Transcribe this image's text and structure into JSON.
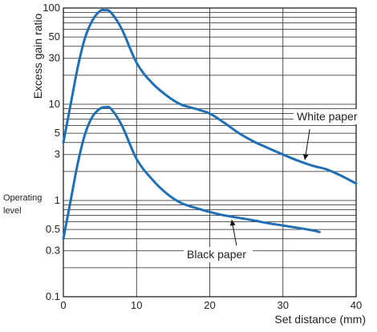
{
  "chart_data": {
    "type": "line",
    "xlabel": "Set distance (mm)",
    "ylabel": "Excess gain ratio",
    "xlim": [
      0,
      40
    ],
    "ylim": [
      0.1,
      100
    ],
    "yscale": "log",
    "grid": true,
    "x_ticks": [
      0,
      10,
      20,
      30,
      40
    ],
    "x_tick_labels": [
      "0",
      "10",
      "20",
      "30",
      "40"
    ],
    "y_ticks": [
      0.1,
      0.3,
      0.5,
      1,
      3,
      5,
      10,
      30,
      50,
      100
    ],
    "y_tick_labels": [
      "0.1",
      "0.3",
      "0.5",
      "1",
      "3",
      "5",
      "10",
      "30",
      "50",
      "100"
    ],
    "operating_level": {
      "label_line1": "Operating",
      "label_line2": "level",
      "value": 1
    },
    "series": [
      {
        "name": "White paper",
        "color": "#1f6fb4",
        "x": [
          0,
          1,
          2,
          3,
          4,
          5,
          5.7,
          6.5,
          8,
          10,
          12,
          14,
          16,
          18,
          20,
          22,
          24,
          26,
          28,
          30,
          32,
          34,
          36,
          38,
          40
        ],
        "y": [
          4,
          10,
          25,
          50,
          75,
          93,
          95,
          90,
          60,
          27,
          17,
          12.5,
          10,
          9,
          8,
          6.4,
          5,
          4.1,
          3.5,
          3,
          2.6,
          2.3,
          2.1,
          1.8,
          1.5
        ]
      },
      {
        "name": "Black paper",
        "color": "#1f6fb4",
        "x": [
          0,
          1,
          2,
          3,
          4,
          5,
          5.7,
          6.5,
          8,
          10,
          12,
          14,
          16,
          18,
          20,
          22,
          24,
          26,
          28,
          30,
          32,
          34,
          35
        ],
        "y": [
          0.4,
          1,
          2.5,
          5,
          7.5,
          9,
          9.3,
          9,
          6,
          2.7,
          1.7,
          1.2,
          0.95,
          0.84,
          0.76,
          0.7,
          0.66,
          0.62,
          0.58,
          0.55,
          0.52,
          0.49,
          0.47
        ]
      }
    ],
    "annotations": [
      {
        "text": "White paper",
        "series": "White paper",
        "x": 33
      },
      {
        "text": "Black paper",
        "series": "Black paper",
        "x": 23
      }
    ]
  }
}
